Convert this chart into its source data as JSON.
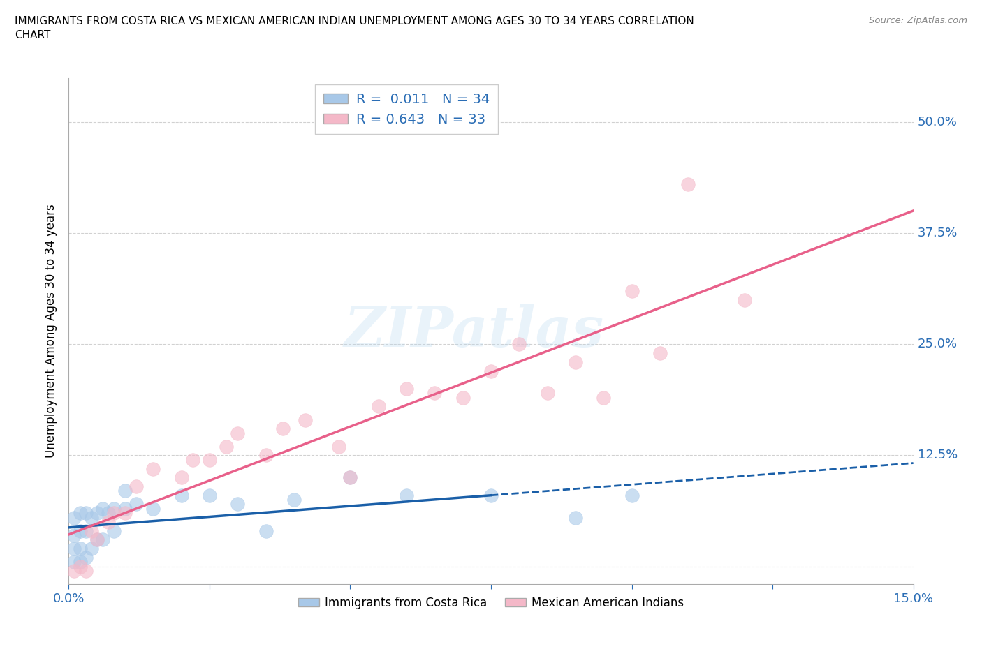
{
  "title": "IMMIGRANTS FROM COSTA RICA VS MEXICAN AMERICAN INDIAN UNEMPLOYMENT AMONG AGES 30 TO 34 YEARS CORRELATION\nCHART",
  "source": "Source: ZipAtlas.com",
  "ylabel": "Unemployment Among Ages 30 to 34 years",
  "xlim": [
    0.0,
    0.15
  ],
  "ylim": [
    -0.02,
    0.55
  ],
  "xticks": [
    0.0,
    0.025,
    0.05,
    0.075,
    0.1,
    0.125,
    0.15
  ],
  "xtick_labels": [
    "0.0%",
    "",
    "",
    "",
    "",
    "",
    "15.0%"
  ],
  "ytick_labels": [
    "",
    "12.5%",
    "25.0%",
    "37.5%",
    "50.0%"
  ],
  "yticks": [
    0.0,
    0.125,
    0.25,
    0.375,
    0.5
  ],
  "legend1_R": "0.011",
  "legend1_N": "34",
  "legend2_R": "0.643",
  "legend2_N": "33",
  "color_blue": "#a8c8e8",
  "color_pink": "#f4b8c8",
  "color_blue_line": "#1a5fa8",
  "color_pink_line": "#e8608a",
  "watermark": "ZIPatlas",
  "background_color": "#ffffff",
  "grid_color": "#cccccc",
  "blue_x": [
    0.001,
    0.001,
    0.001,
    0.001,
    0.002,
    0.002,
    0.002,
    0.002,
    0.003,
    0.003,
    0.003,
    0.004,
    0.004,
    0.005,
    0.005,
    0.006,
    0.006,
    0.007,
    0.008,
    0.008,
    0.01,
    0.01,
    0.012,
    0.015,
    0.02,
    0.025,
    0.03,
    0.035,
    0.04,
    0.05,
    0.06,
    0.075,
    0.09,
    0.1
  ],
  "blue_y": [
    0.005,
    0.02,
    0.035,
    0.055,
    0.005,
    0.02,
    0.04,
    0.06,
    0.01,
    0.04,
    0.06,
    0.02,
    0.055,
    0.03,
    0.06,
    0.03,
    0.065,
    0.06,
    0.04,
    0.065,
    0.065,
    0.085,
    0.07,
    0.065,
    0.08,
    0.08,
    0.07,
    0.04,
    0.075,
    0.1,
    0.08,
    0.08,
    0.055,
    0.08
  ],
  "pink_x": [
    0.001,
    0.002,
    0.003,
    0.004,
    0.005,
    0.007,
    0.008,
    0.01,
    0.012,
    0.015,
    0.02,
    0.022,
    0.025,
    0.028,
    0.03,
    0.035,
    0.038,
    0.042,
    0.048,
    0.05,
    0.055,
    0.06,
    0.065,
    0.07,
    0.075,
    0.08,
    0.085,
    0.09,
    0.095,
    0.1,
    0.105,
    0.11,
    0.12
  ],
  "pink_y": [
    -0.005,
    0.0,
    -0.005,
    0.04,
    0.03,
    0.05,
    0.06,
    0.06,
    0.09,
    0.11,
    0.1,
    0.12,
    0.12,
    0.135,
    0.15,
    0.125,
    0.155,
    0.165,
    0.135,
    0.1,
    0.18,
    0.2,
    0.195,
    0.19,
    0.22,
    0.25,
    0.195,
    0.23,
    0.19,
    0.31,
    0.24,
    0.43,
    0.3
  ]
}
